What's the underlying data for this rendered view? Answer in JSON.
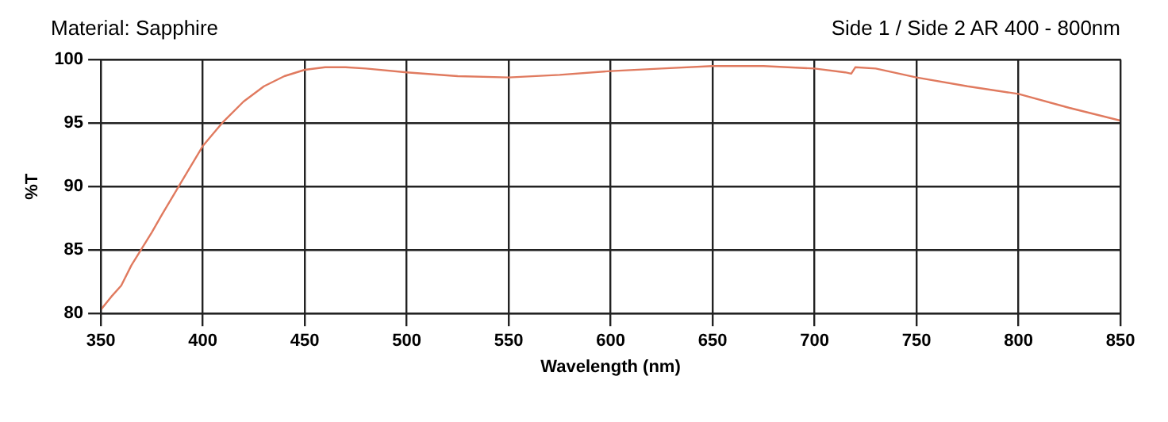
{
  "chart_data": {
    "type": "line",
    "title": "Material: Sapphire",
    "subtitle": "Side 1 / Side 2 AR 400 - 800nm",
    "xlabel": "Wavelength (nm)",
    "ylabel": "%T",
    "x": [
      350,
      355,
      360,
      365,
      370,
      375,
      380,
      390,
      400,
      410,
      420,
      430,
      440,
      450,
      460,
      470,
      480,
      500,
      525,
      550,
      575,
      600,
      625,
      650,
      675,
      700,
      715,
      718,
      720,
      730,
      750,
      775,
      800,
      825,
      850
    ],
    "series": [
      {
        "color": "#e07a5f",
        "values": [
          80.3,
          81.3,
          82.2,
          83.8,
          85.1,
          86.4,
          87.8,
          90.5,
          93.2,
          95.1,
          96.7,
          97.9,
          98.7,
          99.2,
          99.4,
          99.4,
          99.3,
          99.0,
          98.7,
          98.6,
          98.8,
          99.1,
          99.3,
          99.5,
          99.5,
          99.3,
          99.0,
          98.9,
          99.4,
          99.3,
          98.6,
          97.9,
          97.3,
          96.2,
          95.2
        ]
      }
    ],
    "xlim": [
      350,
      850
    ],
    "xticks": [
      350,
      400,
      450,
      500,
      550,
      600,
      650,
      700,
      750,
      800,
      850
    ],
    "ylim": [
      80,
      100
    ],
    "yticks": [
      80,
      85,
      90,
      95,
      100
    ],
    "grid": true,
    "legend": false,
    "marker": "none",
    "line_style": "solid"
  }
}
